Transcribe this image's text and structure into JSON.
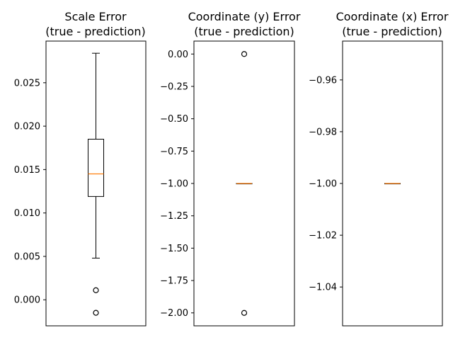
{
  "chart_data": [
    {
      "type": "boxplot",
      "title_lines": [
        "Scale Error",
        "(true - prediction)"
      ],
      "ylim": [
        -0.003,
        0.0298
      ],
      "yticks": [
        0.0,
        0.005,
        0.01,
        0.015,
        0.02,
        0.025
      ],
      "ytick_labels": [
        "0.000",
        "0.005",
        "0.010",
        "0.015",
        "0.020",
        "0.025"
      ],
      "box": {
        "whisker_low": 0.0048,
        "q1": 0.0119,
        "median": 0.0145,
        "q3": 0.0185,
        "whisker_high": 0.0284
      },
      "outliers": [
        0.0011,
        -0.0015
      ]
    },
    {
      "type": "boxplot",
      "title_lines": [
        "Coordinate (y) Error",
        "(true - prediction)"
      ],
      "ylim": [
        -2.1,
        0.1
      ],
      "yticks": [
        0.0,
        -0.25,
        -0.5,
        -0.75,
        -1.0,
        -1.25,
        -1.5,
        -1.75,
        -2.0
      ],
      "ytick_labels": [
        "0.00",
        "−0.25",
        "−0.50",
        "−0.75",
        "−1.00",
        "−1.25",
        "−1.50",
        "−1.75",
        "−2.00"
      ],
      "box": {
        "whisker_low": -1.0,
        "q1": -1.0,
        "median": -1.0,
        "q3": -1.0,
        "whisker_high": -1.0
      },
      "outliers": [
        0.0,
        -2.0
      ]
    },
    {
      "type": "boxplot",
      "title_lines": [
        "Coordinate (x) Error",
        "(true - prediction)"
      ],
      "ylim": [
        -1.055,
        -0.945
      ],
      "yticks": [
        -0.96,
        -0.98,
        -1.0,
        -1.02,
        -1.04
      ],
      "ytick_labels": [
        "−0.96",
        "−0.98",
        "−1.00",
        "−1.02",
        "−1.04"
      ],
      "box": {
        "whisker_low": -1.0,
        "q1": -1.0,
        "median": -1.0,
        "q3": -1.0,
        "whisker_high": -1.0
      },
      "outliers": []
    }
  ],
  "colors": {
    "median": "#ff7f0e",
    "box": "#000000",
    "frame": "#000000",
    "background": "#ffffff"
  }
}
